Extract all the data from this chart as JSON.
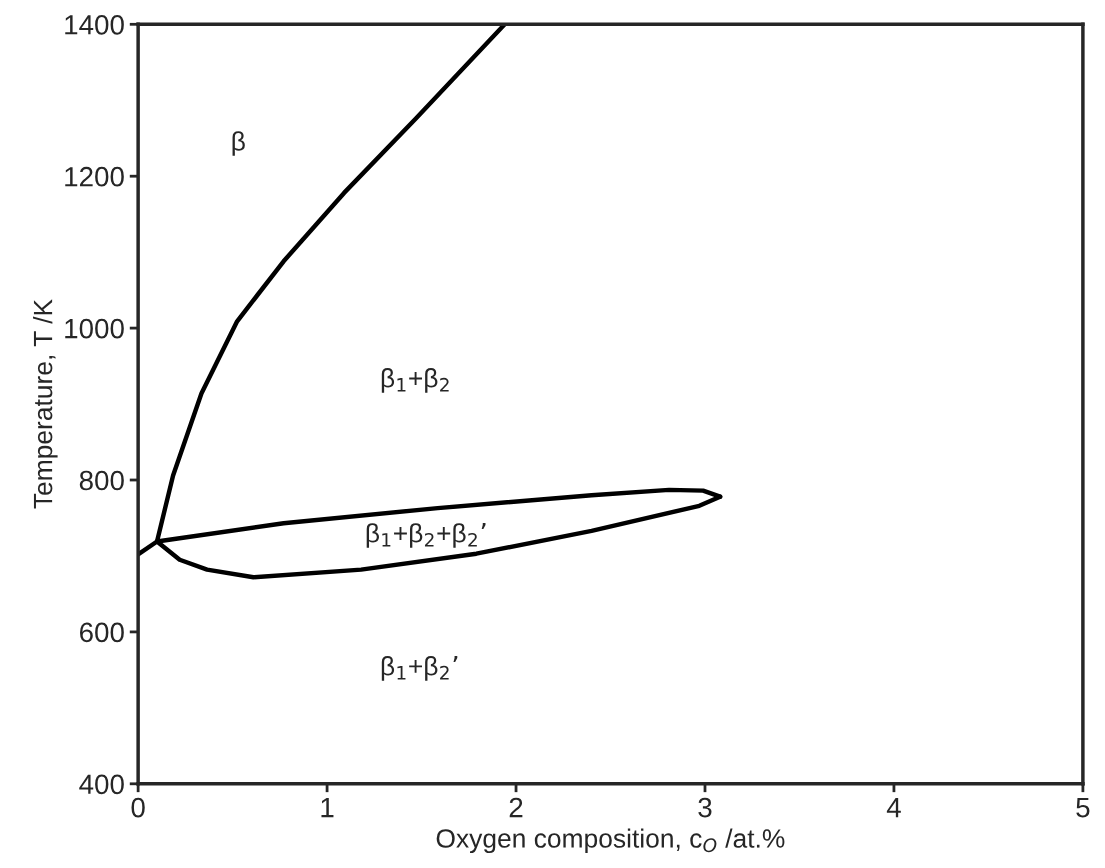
{
  "chart_data": {
    "type": "line",
    "xlabel": "Oxygen composition, c$_{O}$ /at.%",
    "ylabel": "Temperature, T /K",
    "xlim": [
      0,
      5
    ],
    "xticks": [
      0,
      1,
      2,
      3,
      4,
      5
    ],
    "ylim": [
      400,
      1400
    ],
    "yticks": [
      400,
      600,
      800,
      1000,
      1200,
      1400
    ],
    "grid": false,
    "marker": "none",
    "line_style": "solid",
    "series": [
      {
        "color": "#000000",
        "x": [
          0,
          0.1
        ],
        "values": [
          702,
          719
        ]
      },
      {
        "color": "#000000",
        "x": [
          0.1,
          0.185,
          0.335,
          0.524,
          0.77,
          1.09,
          1.47,
          1.94
        ],
        "values": [
          719,
          806,
          914,
          1009,
          1088,
          1178,
          1276,
          1400
        ]
      },
      {
        "color": "#000000",
        "x": [
          0.1,
          0.77,
          1.585,
          2.4,
          2.81,
          2.99,
          3.08
        ],
        "values": [
          719,
          743,
          763,
          780,
          787,
          786,
          778
        ]
      },
      {
        "color": "#000000",
        "x": [
          0.1,
          0.22,
          0.365,
          0.61,
          1.18,
          1.79,
          2.4,
          2.97,
          3.08
        ],
        "values": [
          719,
          695,
          682,
          672,
          682,
          703,
          733,
          766,
          778
        ]
      }
    ],
    "annotations": [
      "β",
      "β$_{1}$+β$_{2}$",
      "β$_{1}$+β$_{2}$+β$_{2}$’",
      "β$_{1}$+β$_{2}$’"
    ]
  }
}
